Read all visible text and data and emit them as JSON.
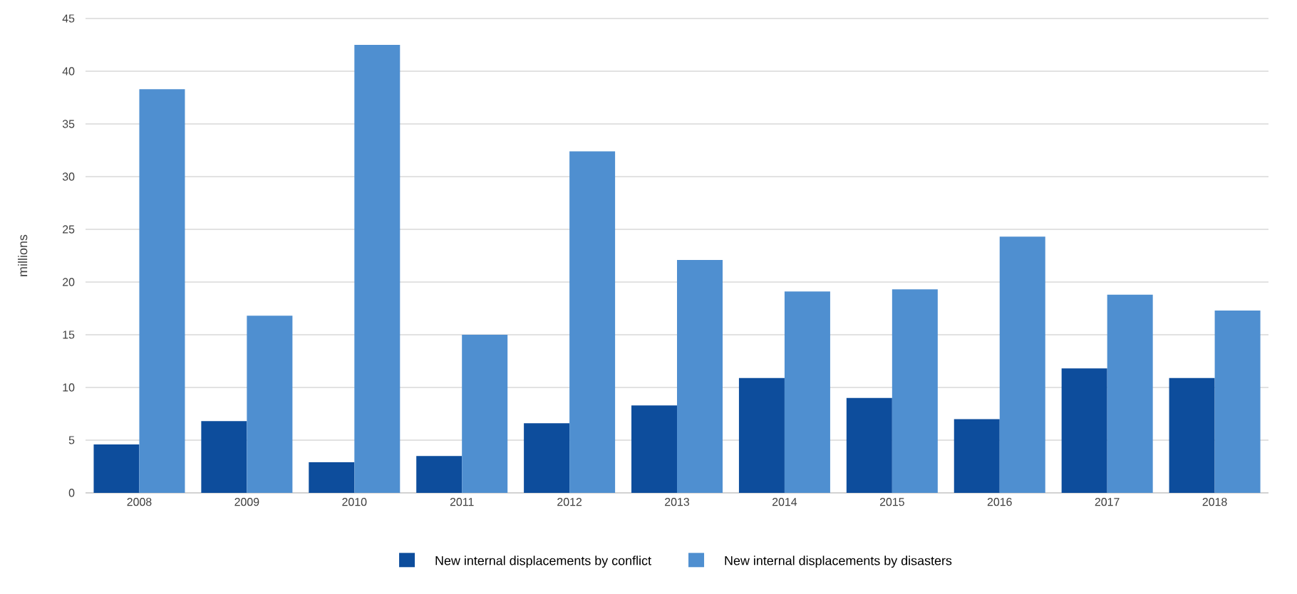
{
  "chart_data": {
    "type": "bar",
    "ylabel": "millions",
    "categories": [
      "2008",
      "2009",
      "2010",
      "2011",
      "2012",
      "2013",
      "2014",
      "2015",
      "2016",
      "2017",
      "2018"
    ],
    "series": [
      {
        "name": "New internal displacements by conflict",
        "color": "#0d4d9c",
        "values": [
          4.6,
          6.8,
          2.9,
          3.5,
          6.6,
          8.3,
          10.9,
          9.0,
          7.0,
          11.8,
          10.9
        ]
      },
      {
        "name": "New internal displacements by disasters",
        "color": "#4f8fd0",
        "values": [
          38.3,
          16.8,
          42.5,
          15.0,
          32.4,
          22.1,
          19.1,
          19.3,
          24.3,
          18.8,
          17.3
        ]
      }
    ],
    "ylim": [
      0,
      45
    ],
    "yticks": [
      0,
      5,
      10,
      15,
      20,
      25,
      30,
      35,
      40,
      45
    ],
    "grid": "y",
    "legend": "bottom"
  }
}
